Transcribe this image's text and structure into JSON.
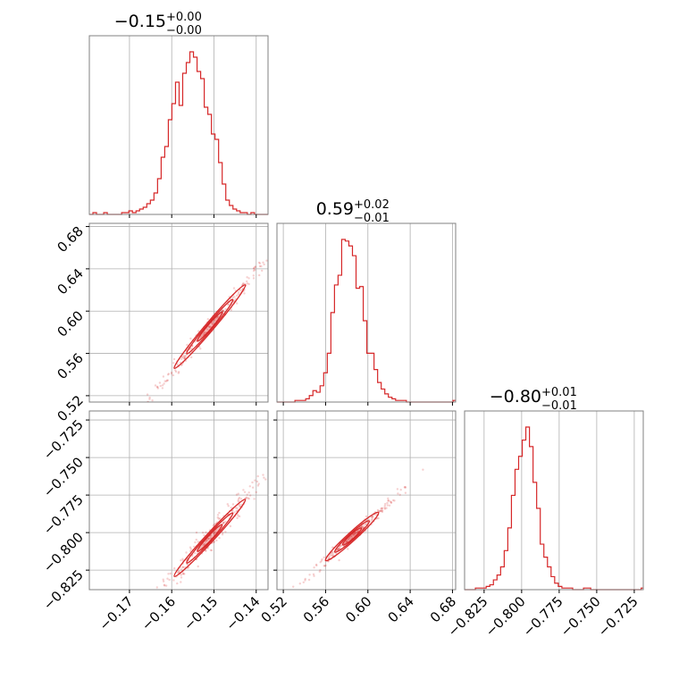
{
  "chart_data": {
    "type": "corner",
    "color": "#d62728",
    "parameters": [
      {
        "title": {
          "value": "−0.15",
          "plus": "+0.00",
          "minus": "−0.00"
        },
        "ticks": [
          -0.17,
          -0.16,
          -0.15,
          -0.14
        ],
        "tick_labels": [
          "−0.17",
          "−0.16",
          "−0.15",
          "−0.14"
        ],
        "range": [
          -0.1795,
          -0.1372
        ],
        "histogram": {
          "bin_edges_start": -0.1795,
          "bin_width": 0.00085,
          "counts": [
            0,
            1,
            0,
            0,
            1,
            0,
            0,
            0,
            0,
            1,
            1,
            2,
            1,
            2,
            3,
            4,
            6,
            8,
            12,
            20,
            32,
            38,
            53,
            62,
            74,
            61,
            79,
            85,
            91,
            88,
            80,
            76,
            60,
            56,
            45,
            42,
            29,
            17,
            8,
            5,
            3,
            2,
            1,
            1,
            0,
            1,
            0,
            0,
            0,
            0
          ]
        }
      },
      {
        "title": {
          "value": "0.59",
          "plus": "+0.02",
          "minus": "−0.01"
        },
        "ticks": [
          0.52,
          0.56,
          0.6,
          0.64,
          0.68
        ],
        "tick_labels": [
          "0.52",
          "0.56",
          "0.60",
          "0.64",
          "0.68"
        ],
        "range": [
          0.514,
          0.683
        ],
        "histogram": {
          "bin_edges_start": 0.514,
          "bin_width": 0.0034,
          "counts": [
            0,
            0,
            0,
            0,
            0,
            1,
            1,
            1,
            2,
            4,
            7,
            6,
            10,
            18,
            30,
            55,
            72,
            78,
            100,
            99,
            96,
            90,
            70,
            71,
            50,
            30,
            30,
            20,
            12,
            8,
            5,
            3,
            2,
            1,
            1,
            1,
            0,
            0,
            0,
            0,
            0,
            0,
            0,
            0,
            0,
            0,
            0,
            0,
            0,
            1
          ]
        }
      },
      {
        "title": {
          "value": "−0.80",
          "plus": "+0.01",
          "minus": "−0.01"
        },
        "ticks": [
          -0.825,
          -0.8,
          -0.775,
          -0.75,
          -0.725
        ],
        "tick_labels": [
          "−0.825",
          "−0.800",
          "−0.775",
          "−0.750",
          "−0.725"
        ],
        "range": [
          -0.838,
          -0.719
        ],
        "histogram": {
          "bin_edges_start": -0.838,
          "bin_width": 0.0024,
          "counts": [
            0,
            0,
            0,
            1,
            1,
            1,
            2,
            3,
            6,
            9,
            14,
            24,
            38,
            58,
            74,
            82,
            92,
            100,
            88,
            66,
            50,
            28,
            20,
            14,
            8,
            4,
            2,
            1,
            1,
            1,
            0,
            0,
            0,
            1,
            1,
            0,
            0,
            0,
            0,
            0,
            0,
            0,
            0,
            0,
            0,
            0,
            0,
            0,
            0,
            1
          ]
        }
      }
    ],
    "y_ticks": {
      "param2": {
        "ticks": [
          0.52,
          0.56,
          0.6,
          0.64,
          0.68
        ],
        "tick_labels": [
          "0.52",
          "0.56",
          "0.60",
          "0.64",
          "0.68"
        ]
      },
      "param3": {
        "ticks": [
          -0.825,
          -0.8,
          -0.775,
          -0.75,
          -0.725
        ],
        "tick_labels": [
          "−0.825",
          "−0.800",
          "−0.775",
          "−0.750",
          "−0.725"
        ]
      }
    },
    "correlations": {
      "p1_p2": {
        "slope": 4.7,
        "intercept": 1.295,
        "spread": 0.004
      },
      "p1_p3": {
        "slope": 3.05,
        "intercept": -0.343,
        "spread": 0.004
      },
      "p2_p3": {
        "slope": 0.64,
        "intercept": -1.177,
        "spread": 0.002
      }
    },
    "grid": true
  }
}
